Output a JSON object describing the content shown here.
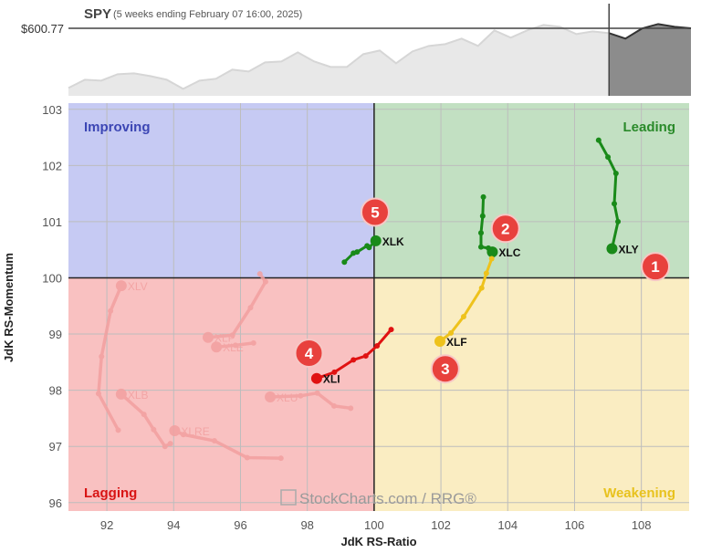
{
  "header": {
    "symbol": "SPY",
    "subtitle": "(5 weeks ending February 07 16:00, 2025)",
    "price_label": "$600.77"
  },
  "spy_prices": [
    568.1,
    572.6,
    572.1,
    575.6,
    576.1,
    574.6,
    572.6,
    567.6,
    572.1,
    573.1,
    578.1,
    577.1,
    582.1,
    582.6,
    587.6,
    582.6,
    579.6,
    579.6,
    586.6,
    588.6,
    581.6,
    588.1,
    591.1,
    592.1,
    595.1,
    591.1,
    599.6,
    595.6,
    599.6,
    602.6,
    601.6,
    597.6,
    599.1,
    598.1,
    595.1,
    600.6,
    603.1,
    601.6,
    600.77
  ],
  "watermark": "StockCharts.com / RRG®",
  "chart_data": {
    "type": "scatter",
    "title": "",
    "xlabel": "JdK RS-Ratio",
    "ylabel": "JdK RS-Momentum",
    "xlim": [
      90.85,
      109.43
    ],
    "ylim": [
      95.85,
      103.11
    ],
    "xticks": [
      "92",
      "94",
      "96",
      "98",
      "100",
      "102",
      "104",
      "106",
      "108"
    ],
    "yticks": [
      "96",
      "97",
      "98",
      "99",
      "100",
      "101",
      "102",
      "103"
    ],
    "grid": true,
    "center": [
      100,
      100
    ],
    "quadrants": [
      {
        "name": "Improving",
        "color": "#c6caf3",
        "text_color": "#3c46b4"
      },
      {
        "name": "Leading",
        "color": "#c2e0c2",
        "text_color": "#2a8a2a"
      },
      {
        "name": "Lagging",
        "color": "#f9c1c1",
        "text_color": "#d81414"
      },
      {
        "name": "Weakening",
        "color": "#faedc2",
        "text_color": "#e8c21e"
      }
    ],
    "series": [
      {
        "name": "XLY",
        "color": "#198a19",
        "highlighted": true,
        "points": [
          [
            106.72,
            102.45
          ],
          [
            107.0,
            102.15
          ],
          [
            107.24,
            101.86
          ],
          [
            107.19,
            101.32
          ],
          [
            107.3,
            101.0
          ],
          [
            107.12,
            100.52
          ]
        ]
      },
      {
        "name": "XLC",
        "color": "#198a19",
        "highlighted": true,
        "points": [
          [
            103.27,
            101.44
          ],
          [
            103.25,
            101.1
          ],
          [
            103.2,
            100.8
          ],
          [
            103.2,
            100.55
          ],
          [
            103.42,
            100.53
          ],
          [
            103.54,
            100.46
          ]
        ]
      },
      {
        "name": "XLK",
        "color": "#198a19",
        "highlighted": true,
        "points": [
          [
            99.11,
            100.28
          ],
          [
            99.38,
            100.44
          ],
          [
            99.49,
            100.46
          ],
          [
            99.79,
            100.57
          ],
          [
            99.85,
            100.54
          ],
          [
            100.05,
            100.66
          ]
        ]
      },
      {
        "name": "XLF",
        "color": "#eec21c",
        "highlighted": true,
        "points": [
          [
            103.52,
            100.34
          ],
          [
            103.36,
            100.08
          ],
          [
            103.22,
            99.82
          ],
          [
            102.68,
            99.31
          ],
          [
            102.3,
            99.02
          ],
          [
            101.97,
            98.87
          ]
        ]
      },
      {
        "name": "XLI",
        "color": "#e01212",
        "highlighted": true,
        "points": [
          [
            100.51,
            99.08
          ],
          [
            100.09,
            98.79
          ],
          [
            99.75,
            98.61
          ],
          [
            99.38,
            98.54
          ],
          [
            98.81,
            98.32
          ],
          [
            98.28,
            98.21
          ]
        ]
      },
      {
        "name": "XLV",
        "color": "#f2a0a0",
        "highlighted": false,
        "points": [
          [
            92.34,
            97.29
          ],
          [
            91.75,
            97.94
          ],
          [
            91.84,
            98.6
          ],
          [
            92.11,
            99.41
          ],
          [
            92.43,
            99.86
          ]
        ]
      },
      {
        "name": "XLB",
        "color": "#f2a0a0",
        "highlighted": false,
        "points": [
          [
            93.9,
            97.05
          ],
          [
            93.74,
            97.0
          ],
          [
            93.4,
            97.3
          ],
          [
            93.11,
            97.57
          ],
          [
            92.43,
            97.93
          ]
        ]
      },
      {
        "name": "XLRE",
        "color": "#f2a0a0",
        "highlighted": false,
        "points": [
          [
            97.21,
            96.79
          ],
          [
            96.2,
            96.8
          ],
          [
            95.22,
            97.1
          ],
          [
            94.29,
            97.21
          ],
          [
            94.03,
            97.28
          ]
        ]
      },
      {
        "name": "XLP",
        "color": "#f2a0a0",
        "highlighted": false,
        "points": [
          [
            96.58,
            100.07
          ],
          [
            96.75,
            99.93
          ],
          [
            96.3,
            99.47
          ],
          [
            95.76,
            98.98
          ],
          [
            95.03,
            98.94
          ]
        ]
      },
      {
        "name": "XLE",
        "color": "#f2a0a0",
        "highlighted": false,
        "points": [
          [
            96.39,
            98.84
          ],
          [
            95.85,
            98.8
          ],
          [
            95.28,
            98.77
          ]
        ]
      },
      {
        "name": "XLU",
        "color": "#f2a0a0",
        "highlighted": false,
        "points": [
          [
            99.3,
            97.68
          ],
          [
            98.8,
            97.72
          ],
          [
            98.3,
            97.95
          ],
          [
            97.8,
            97.9
          ],
          [
            96.89,
            97.88
          ]
        ]
      }
    ],
    "annotations": [
      {
        "label": "1",
        "x": 108.42,
        "y": 100.2
      },
      {
        "label": "2",
        "x": 103.93,
        "y": 100.88
      },
      {
        "label": "3",
        "x": 102.13,
        "y": 98.38
      },
      {
        "label": "4",
        "x": 98.05,
        "y": 98.66
      },
      {
        "label": "5",
        "x": 100.03,
        "y": 101.17
      }
    ]
  }
}
